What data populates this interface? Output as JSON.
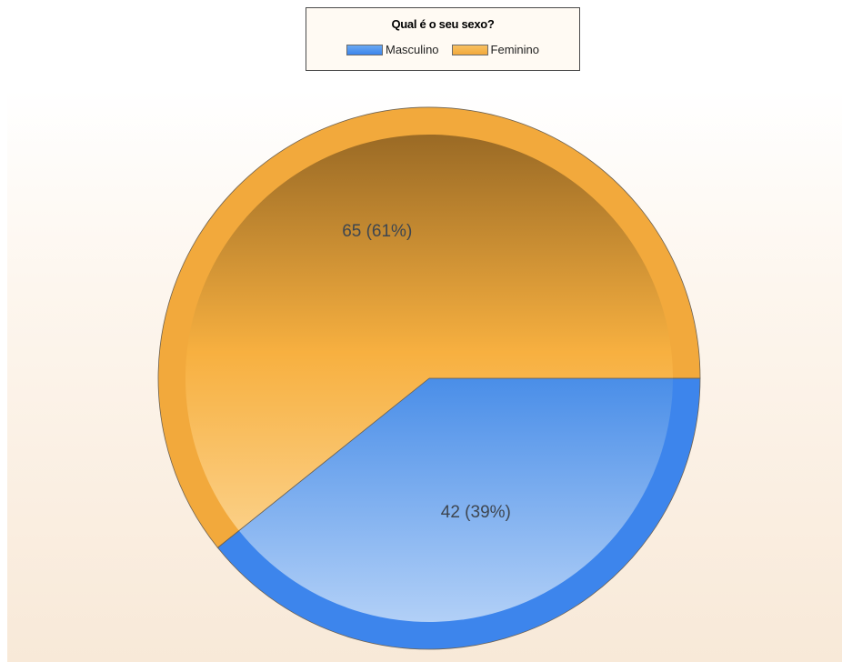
{
  "chart_data": {
    "type": "pie",
    "title": "Qual é o seu sexo?",
    "legend_position": "top",
    "categories": [
      "Masculino",
      "Feminino"
    ],
    "values": [
      42,
      65
    ],
    "percentages": [
      39,
      61
    ],
    "data_labels": [
      "42 (39%)",
      "65 (61%)"
    ],
    "colors": {
      "Masculino": "#3d85ec",
      "Feminino": "#f2a93c"
    }
  }
}
